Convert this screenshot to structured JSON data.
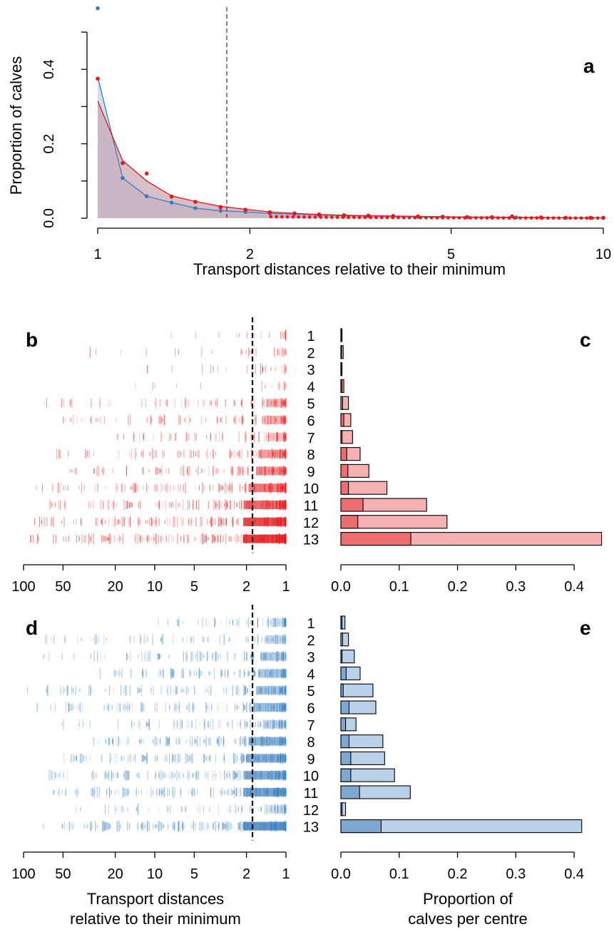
{
  "colors": {
    "red": "#e31a1c",
    "blue": "#3a7dbf",
    "red_fill": "#c9a8b4",
    "blue_fill": "#c9dbef",
    "red_bar_dark": "#ec6e70",
    "red_bar_light": "#f6b1b2",
    "blue_bar_dark": "#7ea8d2",
    "blue_bar_light": "#b9d2ea"
  },
  "chart_data": [
    {
      "panel": "a",
      "type": "line",
      "title": "",
      "xlabel": "Transport distances relative to their minimum",
      "ylabel": "Proportion of calves",
      "x_scale": "log",
      "xlim": [
        1,
        10
      ],
      "ylim": [
        0,
        0.5
      ],
      "x_ticks": [
        1,
        2,
        5,
        10
      ],
      "y_ticks": [
        0.0,
        0.2,
        0.4
      ],
      "y_tick_labels": [
        "0.0",
        "0.2",
        "0.4"
      ],
      "vline_x": 1.8,
      "series": [
        {
          "color": "blue",
          "points": [
            [
              1.0,
              0.564
            ],
            [
              1.12,
              0.108
            ],
            [
              1.25,
              0.059
            ],
            [
              1.4,
              0.042
            ],
            [
              1.56,
              0.027
            ],
            [
              1.75,
              0.02
            ],
            [
              1.96,
              0.017
            ],
            [
              2.19,
              0.013
            ],
            [
              2.45,
              0.011
            ],
            [
              2.74,
              0.009
            ],
            [
              3.07,
              0.007
            ],
            [
              3.43,
              0.006
            ],
            [
              3.84,
              0.005
            ],
            [
              4.3,
              0.004
            ],
            [
              4.81,
              0.003
            ],
            [
              5.38,
              0.003
            ],
            [
              6.02,
              0.002
            ],
            [
              6.73,
              0.002
            ],
            [
              7.53,
              0.002
            ],
            [
              8.43,
              0.001
            ],
            [
              9.43,
              0.001
            ],
            [
              10.0,
              0.001
            ]
          ],
          "curve": [
            [
              1.0,
              0.38
            ],
            [
              1.12,
              0.108
            ],
            [
              1.25,
              0.059
            ],
            [
              1.4,
              0.042
            ],
            [
              1.56,
              0.027
            ],
            [
              1.75,
              0.02
            ],
            [
              1.96,
              0.017
            ],
            [
              2.19,
              0.013
            ],
            [
              2.45,
              0.011
            ],
            [
              2.74,
              0.009
            ],
            [
              3.07,
              0.007
            ],
            [
              3.43,
              0.006
            ],
            [
              3.84,
              0.005
            ],
            [
              4.3,
              0.004
            ],
            [
              4.81,
              0.003
            ],
            [
              5.38,
              0.003
            ],
            [
              6.02,
              0.002
            ],
            [
              6.73,
              0.002
            ],
            [
              7.53,
              0.002
            ],
            [
              8.43,
              0.001
            ],
            [
              9.43,
              0.001
            ],
            [
              10.0,
              0.001
            ]
          ]
        },
        {
          "color": "red",
          "points": [
            [
              1.0,
              0.375
            ],
            [
              1.12,
              0.148
            ],
            [
              1.25,
              0.12
            ],
            [
              1.4,
              0.058
            ],
            [
              1.56,
              0.044
            ],
            [
              1.75,
              0.03
            ],
            [
              1.96,
              0.023
            ],
            [
              2.19,
              0.016
            ],
            [
              2.45,
              0.013
            ],
            [
              2.74,
              0.01
            ],
            [
              3.07,
              0.008
            ],
            [
              3.43,
              0.007
            ],
            [
              3.84,
              0.006
            ],
            [
              4.3,
              0.005
            ],
            [
              4.81,
              0.004
            ],
            [
              5.38,
              0.003
            ],
            [
              6.02,
              0.003
            ],
            [
              6.6,
              0.005
            ],
            [
              7.53,
              0.002
            ],
            [
              8.43,
              0.001
            ],
            [
              9.43,
              0.001
            ],
            [
              10.0,
              0.001
            ]
          ],
          "curve": [
            [
              1.0,
              0.315
            ],
            [
              1.12,
              0.155
            ],
            [
              1.25,
              0.1
            ],
            [
              1.4,
              0.06
            ],
            [
              1.56,
              0.045
            ],
            [
              1.75,
              0.032
            ],
            [
              1.96,
              0.024
            ],
            [
              2.19,
              0.017
            ],
            [
              2.45,
              0.013
            ],
            [
              2.74,
              0.01
            ],
            [
              3.07,
              0.008
            ],
            [
              3.43,
              0.007
            ],
            [
              3.84,
              0.006
            ],
            [
              4.3,
              0.005
            ],
            [
              4.81,
              0.004
            ],
            [
              5.38,
              0.003
            ],
            [
              6.02,
              0.003
            ],
            [
              6.73,
              0.002
            ],
            [
              7.53,
              0.002
            ],
            [
              8.43,
              0.001
            ],
            [
              9.43,
              0.001
            ],
            [
              10.0,
              0.001
            ]
          ]
        }
      ]
    },
    {
      "panel": "b",
      "type": "scatter",
      "x_scale": "log",
      "xlim": [
        100,
        1
      ],
      "x_ticks": [
        100,
        50,
        20,
        10,
        5,
        2,
        1
      ],
      "vline_x": 1.8,
      "color": "red",
      "categories": [
        "1",
        "2",
        "3",
        "4",
        "5",
        "6",
        "7",
        "8",
        "9",
        "10",
        "11",
        "12",
        "13"
      ],
      "ranges": [
        [
          8,
          1
        ],
        [
          40,
          1
        ],
        [
          12,
          1
        ],
        [
          18,
          1
        ],
        [
          70,
          1
        ],
        [
          55,
          1
        ],
        [
          22,
          1
        ],
        [
          60,
          1
        ],
        [
          45,
          1
        ],
        [
          80,
          1
        ],
        [
          80,
          1
        ],
        [
          85,
          1
        ],
        [
          90,
          1
        ]
      ],
      "density": [
        18,
        28,
        22,
        14,
        80,
        90,
        70,
        110,
        120,
        150,
        170,
        200,
        230
      ]
    },
    {
      "panel": "c",
      "type": "bar",
      "xlabel": "",
      "xlim": [
        0,
        0.45
      ],
      "x_ticks": [
        0.0,
        0.1,
        0.2,
        0.3,
        0.4
      ],
      "x_tick_labels": [
        "0.0",
        "0.1",
        "0.2",
        "0.3",
        "0.4"
      ],
      "categories": [
        "1",
        "2",
        "3",
        "4",
        "5",
        "6",
        "7",
        "8",
        "9",
        "10",
        "11",
        "12",
        "13"
      ],
      "inner_values": [
        0.0005,
        0.001,
        0.001,
        0.002,
        0.003,
        0.005,
        0.002,
        0.01,
        0.012,
        0.013,
        0.038,
        0.029,
        0.12
      ],
      "total_values": [
        0.002,
        0.004,
        0.002,
        0.005,
        0.013,
        0.017,
        0.02,
        0.033,
        0.048,
        0.079,
        0.147,
        0.182,
        0.447
      ]
    },
    {
      "panel": "d",
      "type": "scatter",
      "xlabel": "Transport distances relative to their minimum",
      "x_scale": "log",
      "xlim": [
        100,
        1
      ],
      "x_ticks": [
        100,
        50,
        20,
        10,
        5,
        2,
        1
      ],
      "vline_x": 1.8,
      "color": "blue",
      "categories": [
        "1",
        "2",
        "3",
        "4",
        "5",
        "6",
        "7",
        "8",
        "9",
        "10",
        "11",
        "12",
        "13"
      ],
      "ranges": [
        [
          12,
          1
        ],
        [
          70,
          1
        ],
        [
          70,
          1
        ],
        [
          40,
          1
        ],
        [
          100,
          1
        ],
        [
          80,
          1
        ],
        [
          60,
          1
        ],
        [
          30,
          1
        ],
        [
          50,
          1
        ],
        [
          70,
          1
        ],
        [
          60,
          1
        ],
        [
          40,
          1
        ],
        [
          75,
          1
        ]
      ],
      "density": [
        60,
        80,
        100,
        110,
        120,
        130,
        90,
        150,
        160,
        170,
        180,
        70,
        210
      ]
    },
    {
      "panel": "e",
      "type": "bar",
      "xlabel": "Proportion of calves per centre",
      "xlim": [
        0,
        0.45
      ],
      "x_ticks": [
        0.0,
        0.1,
        0.2,
        0.3,
        0.4
      ],
      "x_tick_labels": [
        "0.0",
        "0.1",
        "0.2",
        "0.3",
        "0.4"
      ],
      "categories": [
        "1",
        "2",
        "3",
        "4",
        "5",
        "6",
        "7",
        "8",
        "9",
        "10",
        "11",
        "12",
        "13"
      ],
      "inner_values": [
        0.002,
        0.003,
        0.002,
        0.009,
        0.004,
        0.014,
        0.008,
        0.014,
        0.017,
        0.017,
        0.032,
        0.002,
        0.069
      ],
      "total_values": [
        0.007,
        0.013,
        0.023,
        0.033,
        0.055,
        0.06,
        0.026,
        0.072,
        0.075,
        0.092,
        0.119,
        0.008,
        0.413
      ]
    }
  ],
  "panels": {
    "a_label": "a",
    "b_label": "b",
    "c_label": "c",
    "d_label": "d",
    "e_label": "e",
    "a_xlabel": "Transport distances relative to their minimum",
    "a_ylabel": "Proportion of calves",
    "d_xlabel_line1": "Transport distances",
    "d_xlabel_line2": "relative to their minimum",
    "e_xlabel_line1": "Proportion of",
    "e_xlabel_line2": "calves per centre"
  }
}
